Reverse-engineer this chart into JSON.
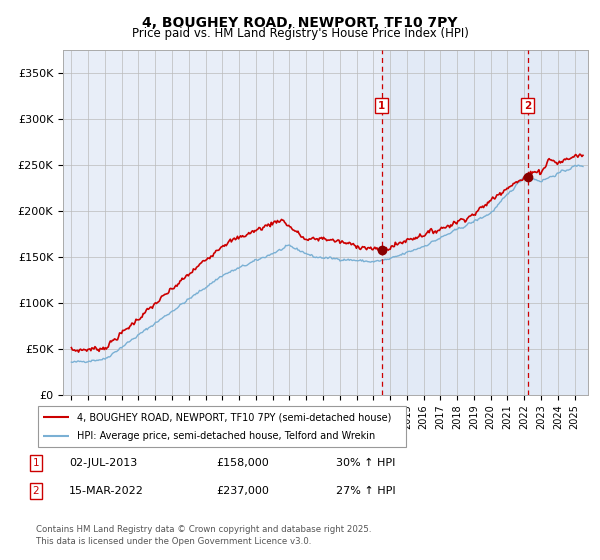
{
  "title": "4, BOUGHEY ROAD, NEWPORT, TF10 7PY",
  "subtitle": "Price paid vs. HM Land Registry's House Price Index (HPI)",
  "ylabel_ticks": [
    "£0",
    "£50K",
    "£100K",
    "£150K",
    "£200K",
    "£250K",
    "£300K",
    "£350K"
  ],
  "ytick_values": [
    0,
    50000,
    100000,
    150000,
    200000,
    250000,
    300000,
    350000
  ],
  "ylim": [
    0,
    375000
  ],
  "xlim_start": 1994.5,
  "xlim_end": 2025.8,
  "xtick_years": [
    1995,
    1996,
    1997,
    1998,
    1999,
    2000,
    2001,
    2002,
    2003,
    2004,
    2005,
    2006,
    2007,
    2008,
    2009,
    2010,
    2011,
    2012,
    2013,
    2014,
    2015,
    2016,
    2017,
    2018,
    2019,
    2020,
    2021,
    2022,
    2023,
    2024,
    2025
  ],
  "red_line_color": "#cc0000",
  "blue_line_color": "#7ab0d4",
  "background_plot": "#e8eef8",
  "background_fig": "#ffffff",
  "grid_color": "#bbbbbb",
  "sale1_x": 2013.5,
  "sale1_y": 158000,
  "sale1_label": "1",
  "sale2_x": 2022.2,
  "sale2_y": 237000,
  "sale2_label": "2",
  "vline_color": "#cc0000",
  "legend_label_red": "4, BOUGHEY ROAD, NEWPORT, TF10 7PY (semi-detached house)",
  "legend_label_blue": "HPI: Average price, semi-detached house, Telford and Wrekin",
  "table_row1": [
    "1",
    "02-JUL-2013",
    "£158,000",
    "30% ↑ HPI"
  ],
  "table_row2": [
    "2",
    "15-MAR-2022",
    "£237,000",
    "27% ↑ HPI"
  ],
  "footnote": "Contains HM Land Registry data © Crown copyright and database right 2025.\nThis data is licensed under the Open Government Licence v3.0.",
  "title_fontsize": 10,
  "subtitle_fontsize": 8.5
}
